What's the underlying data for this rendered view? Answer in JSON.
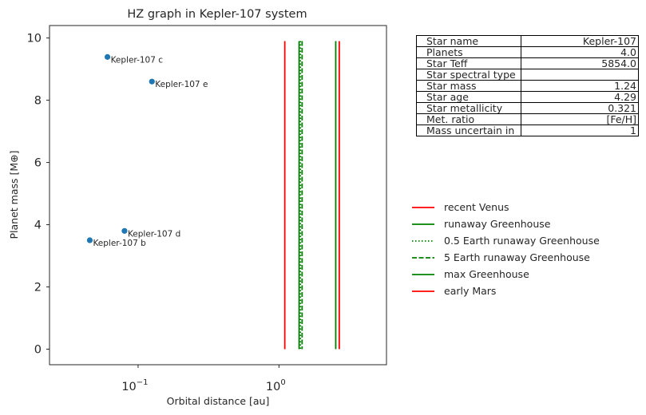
{
  "chart_data": {
    "type": "scatter",
    "title": "HZ graph in Kepler-107 system",
    "xlabel": "Orbital distance [au]",
    "ylabel": "Planet mass [M⊕]",
    "xscale": "log",
    "xlim": [
      0.0235,
      5.8
    ],
    "ylim": [
      -0.5,
      10.4
    ],
    "yticks": [
      0,
      2,
      4,
      6,
      8,
      10
    ],
    "xticks": [
      {
        "value": 0.1,
        "base": "10",
        "exp": "−1"
      },
      {
        "value": 1,
        "base": "10",
        "exp": "0"
      }
    ],
    "grid": false,
    "points": [
      {
        "name": "Kepler-107 b",
        "x": 0.0454,
        "y": 3.5
      },
      {
        "name": "Kepler-107 c",
        "x": 0.0606,
        "y": 9.39
      },
      {
        "name": "Kepler-107 d",
        "x": 0.0801,
        "y": 3.8
      },
      {
        "name": "Kepler-107 e",
        "x": 0.1254,
        "y": 8.6
      }
    ],
    "point_color": "#1f77b4",
    "hz_lines": [
      {
        "name": "recent Venus",
        "x": 1.1,
        "color": "#ff0000",
        "style": "solid"
      },
      {
        "name": "runaway Greenhouse",
        "x": 1.39,
        "color": "#008000",
        "style": "solid"
      },
      {
        "name": "0.5 Earth runaway Greenhouse",
        "x": 1.42,
        "color": "#008000",
        "style": "dotted"
      },
      {
        "name": "5 Earth runaway Greenhouse",
        "x": 1.46,
        "color": "#008000",
        "style": "dashed"
      },
      {
        "name": "max Greenhouse",
        "x": 2.53,
        "color": "#008000",
        "style": "solid"
      },
      {
        "name": "early Mars",
        "x": 2.68,
        "color": "#ff0000",
        "style": "solid"
      }
    ],
    "hz_line_range": [
      0,
      9.9
    ],
    "legend_position": "center-right"
  },
  "star_table": [
    {
      "label": "Star name",
      "value": "Kepler-107"
    },
    {
      "label": "Planets",
      "value": "4.0"
    },
    {
      "label": "Star Teff",
      "value": "5854.0"
    },
    {
      "label": "Star spectral type",
      "value": ""
    },
    {
      "label": "Star mass",
      "value": "1.24"
    },
    {
      "label": "Star age",
      "value": "4.29"
    },
    {
      "label": "Star metallicity",
      "value": "0.321"
    },
    {
      "label": "Met. ratio",
      "value": "[Fe/H]"
    },
    {
      "label": "Mass uncertain in",
      "value": "1"
    }
  ]
}
